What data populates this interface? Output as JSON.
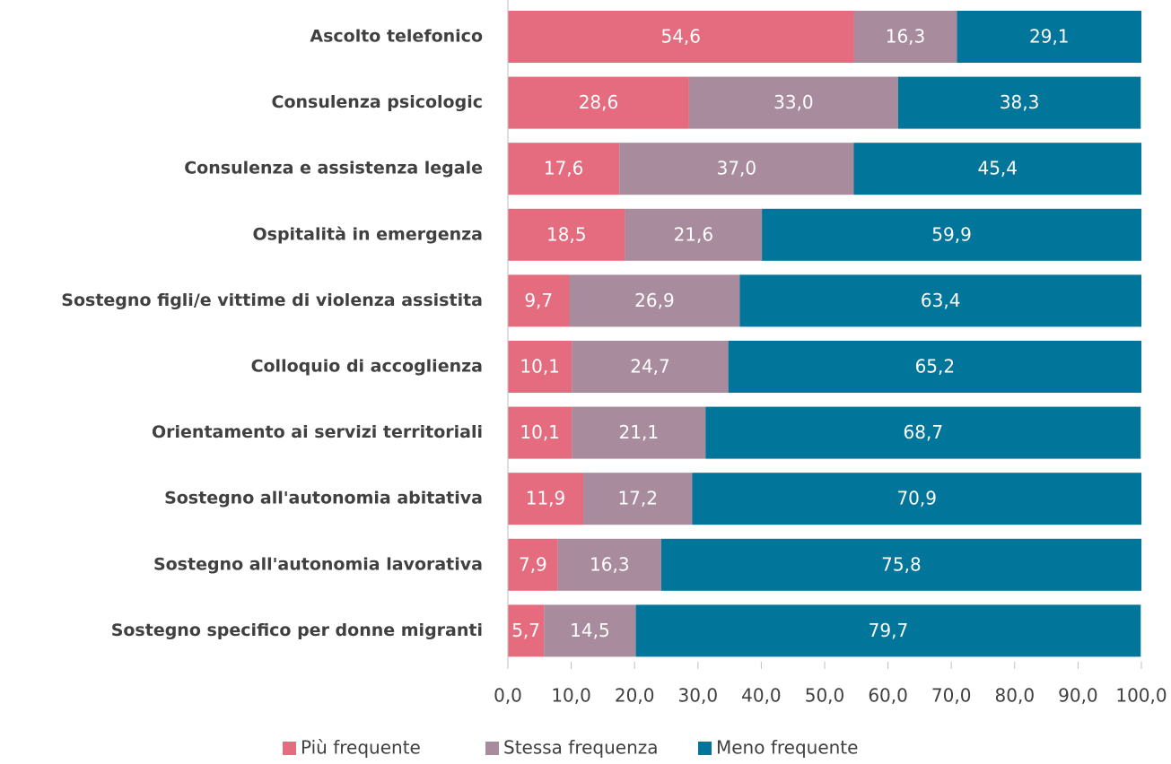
{
  "chart_data": {
    "type": "stacked-bar-horizontal",
    "categories": [
      "Ascolto telefonico",
      "Consulenza psicologic",
      "Consulenza e assistenza legale",
      "Ospitalità in emergenza",
      "Sostegno figli/e vittime di violenza assistita",
      "Colloquio di accoglienza",
      "Orientamento ai servizi territoriali",
      "Sostegno all'autonomia abitativa",
      "Sostegno all'autonomia lavorativa",
      "Sostegno specifico per donne migranti"
    ],
    "series": [
      {
        "name": "Più frequente",
        "color": "#e46c7e",
        "values": [
          54.6,
          28.6,
          17.6,
          18.5,
          9.7,
          10.1,
          10.1,
          11.9,
          7.9,
          5.7
        ],
        "value_labels": [
          "54,6",
          "28,6",
          "17,6",
          "18,5",
          "9,7",
          "10,1",
          "10,1",
          "11,9",
          "7,9",
          "5,7"
        ]
      },
      {
        "name": "Stessa frequenza",
        "color": "#a88b9d",
        "values": [
          16.3,
          33.0,
          37.0,
          21.6,
          26.9,
          24.7,
          21.1,
          17.2,
          16.3,
          14.5
        ],
        "value_labels": [
          "16,3",
          "33,0",
          "37,0",
          "21,6",
          "26,9",
          "24,7",
          "21,1",
          "17,2",
          "16,3",
          "14,5"
        ]
      },
      {
        "name": "Meno frequente",
        "color": "#01759a",
        "values": [
          29.1,
          38.3,
          45.4,
          59.9,
          63.4,
          65.2,
          68.7,
          70.9,
          75.8,
          79.7
        ],
        "value_labels": [
          "29,1",
          "38,3",
          "45,4",
          "59,9",
          "63,4",
          "65,2",
          "68,7",
          "70,9",
          "75,8",
          "79,7"
        ]
      }
    ],
    "xlim": [
      0,
      100
    ],
    "xticks": [
      {
        "value": 0,
        "label": "0,0"
      },
      {
        "value": 10,
        "label": "10,0"
      },
      {
        "value": 20,
        "label": "20,0"
      },
      {
        "value": 30,
        "label": "30,0"
      },
      {
        "value": 40,
        "label": "40,0"
      },
      {
        "value": 50,
        "label": "50,0"
      },
      {
        "value": 60,
        "label": "60,0"
      },
      {
        "value": 70,
        "label": "70,0"
      },
      {
        "value": 80,
        "label": "80,0"
      },
      {
        "value": 90,
        "label": "90,0"
      },
      {
        "value": 100,
        "label": "100,0"
      }
    ],
    "legend": "bottom"
  }
}
